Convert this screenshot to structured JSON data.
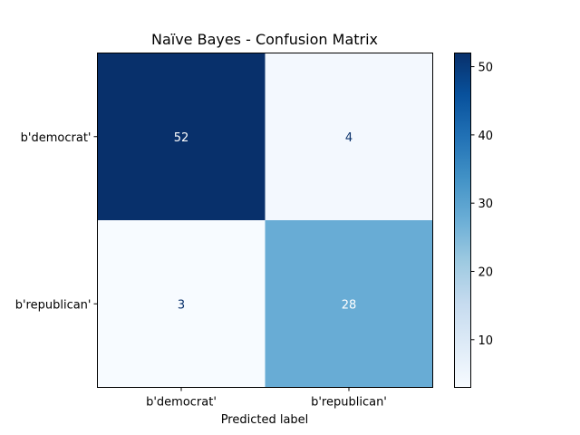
{
  "chart_data": {
    "type": "heatmap",
    "title": "Naïve Bayes - Confusion Matrix",
    "xlabel": "Predicted label",
    "ylabel": "",
    "x_categories": [
      "b'democrat'",
      "b'republican'"
    ],
    "y_categories": [
      "b'democrat'",
      "b'republican'"
    ],
    "values": [
      [
        52,
        4
      ],
      [
        3,
        28
      ]
    ],
    "colormap": "Blues",
    "colorbar": {
      "range": [
        3,
        52
      ],
      "ticks": [
        10,
        20,
        30,
        40,
        50
      ],
      "tick_labels": [
        "10",
        "20",
        "30",
        "40",
        "50"
      ]
    },
    "grid": false
  }
}
